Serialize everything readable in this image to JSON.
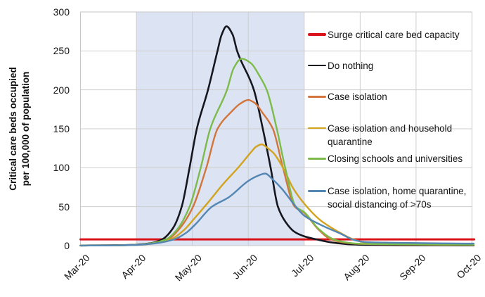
{
  "chart_data": {
    "type": "line",
    "title": "",
    "ylabel_lines": [
      "Critical care beds occupied",
      "per 100,000 of population"
    ],
    "xlabel": "",
    "x_tick_labels": [
      "Mar-20",
      "Apr-20",
      "May-20",
      "Jun-20",
      "Jul-20",
      "Aug-20",
      "Sep-20",
      "Oct-20"
    ],
    "y_ticks": [
      0,
      50,
      100,
      150,
      200,
      250,
      300
    ],
    "ylim": [
      0,
      300
    ],
    "x_months_range": [
      0,
      7
    ],
    "grid": true,
    "grid_color": "#cdcdcd",
    "plot_border_color": "#c6c6c6",
    "shaded_region": {
      "from_month": 1,
      "to_month": 4,
      "color": "#dce4f3"
    },
    "legend_position": "inside-right",
    "series": [
      {
        "id": "surge-capacity",
        "name": "Surge critical care bed capacity",
        "legend_lines": [
          "Surge critical care bed capacity"
        ],
        "color": "#da1118",
        "width": 3,
        "points": [
          [
            0,
            8
          ],
          [
            7.04,
            8
          ]
        ]
      },
      {
        "id": "do-nothing",
        "name": "Do nothing",
        "legend_lines": [
          "Do nothing"
        ],
        "color": "#16161e",
        "width": 2.6,
        "points": [
          [
            0,
            0.2
          ],
          [
            0.5,
            0.4
          ],
          [
            1.0,
            1.2
          ],
          [
            1.25,
            3
          ],
          [
            1.46,
            8
          ],
          [
            1.65,
            22
          ],
          [
            1.81,
            50
          ],
          [
            1.95,
            100
          ],
          [
            2.08,
            150
          ],
          [
            2.28,
            200
          ],
          [
            2.45,
            250
          ],
          [
            2.52,
            270
          ],
          [
            2.61,
            281.5
          ],
          [
            2.72,
            271
          ],
          [
            2.8,
            250
          ],
          [
            3.1,
            200
          ],
          [
            3.26,
            150
          ],
          [
            3.4,
            100
          ],
          [
            3.53,
            50
          ],
          [
            3.67,
            30
          ],
          [
            3.82,
            18
          ],
          [
            4.0,
            12
          ],
          [
            4.22,
            8
          ],
          [
            4.5,
            4
          ],
          [
            4.85,
            1.6
          ],
          [
            5.2,
            0.9
          ],
          [
            5.6,
            0.6
          ],
          [
            6.0,
            0.5
          ],
          [
            6.5,
            0.45
          ],
          [
            7.03,
            0.4
          ]
        ]
      },
      {
        "id": "case-isolation",
        "name": "Case isolation",
        "legend_lines": [
          "Case isolation"
        ],
        "color": "#d2753b",
        "width": 2.4,
        "points": [
          [
            0,
            0.15
          ],
          [
            0.5,
            0.3
          ],
          [
            1.0,
            1.1
          ],
          [
            1.28,
            3
          ],
          [
            1.56,
            8
          ],
          [
            1.75,
            20
          ],
          [
            2.0,
            48
          ],
          [
            2.25,
            100
          ],
          [
            2.45,
            150
          ],
          [
            2.7,
            172
          ],
          [
            2.85,
            182
          ],
          [
            3.0,
            187
          ],
          [
            3.12,
            183
          ],
          [
            3.25,
            171
          ],
          [
            3.44,
            150
          ],
          [
            3.62,
            100
          ],
          [
            3.83,
            50
          ],
          [
            4.0,
            42
          ],
          [
            4.25,
            21
          ],
          [
            4.48,
            8
          ],
          [
            4.75,
            3.6
          ],
          [
            5.0,
            2.2
          ],
          [
            5.5,
            1.6
          ],
          [
            6.0,
            1.3
          ],
          [
            6.5,
            1.1
          ],
          [
            7.03,
            1.0
          ]
        ]
      },
      {
        "id": "case-isolation-household-quarantine",
        "name": "Case isolation and household quarantine",
        "legend_lines": [
          "Case isolation and household",
          "quarantine"
        ],
        "color": "#d2a31e",
        "width": 2.4,
        "points": [
          [
            0,
            0.1
          ],
          [
            0.5,
            0.25
          ],
          [
            1.0,
            0.9
          ],
          [
            1.3,
            2.8
          ],
          [
            1.61,
            8
          ],
          [
            1.85,
            20
          ],
          [
            2.05,
            36
          ],
          [
            2.3,
            57
          ],
          [
            2.55,
            79
          ],
          [
            2.83,
            101
          ],
          [
            3.05,
            120
          ],
          [
            3.14,
            127
          ],
          [
            3.24,
            130
          ],
          [
            3.35,
            125
          ],
          [
            3.45,
            119
          ],
          [
            3.62,
            100
          ],
          [
            3.8,
            74
          ],
          [
            4.0,
            54
          ],
          [
            4.3,
            32
          ],
          [
            4.63,
            17
          ],
          [
            4.88,
            8
          ],
          [
            5.1,
            3.8
          ],
          [
            5.35,
            2.8
          ],
          [
            5.75,
            2.2
          ],
          [
            6.0,
            1.9
          ],
          [
            6.5,
            1.5
          ],
          [
            7.03,
            1.3
          ]
        ]
      },
      {
        "id": "closing-schools-universities",
        "name": "Closing schools and universities",
        "legend_lines": [
          "Closing schools and universities"
        ],
        "color": "#7cbb4a",
        "width": 2.4,
        "points": [
          [
            0,
            0.15
          ],
          [
            0.5,
            0.3
          ],
          [
            1.0,
            1.0
          ],
          [
            1.27,
            3
          ],
          [
            1.53,
            8
          ],
          [
            1.72,
            20
          ],
          [
            1.95,
            50
          ],
          [
            2.15,
            100
          ],
          [
            2.32,
            150
          ],
          [
            2.62,
            200
          ],
          [
            2.74,
            228
          ],
          [
            2.88,
            240
          ],
          [
            3.05,
            234
          ],
          [
            3.2,
            218
          ],
          [
            3.33,
            200
          ],
          [
            3.51,
            150
          ],
          [
            3.66,
            100
          ],
          [
            3.85,
            50
          ],
          [
            4.0,
            43
          ],
          [
            4.25,
            22
          ],
          [
            4.53,
            8
          ],
          [
            4.8,
            3.6
          ],
          [
            5.0,
            2.4
          ],
          [
            5.5,
            1.8
          ],
          [
            6.0,
            1.5
          ],
          [
            6.5,
            1.3
          ],
          [
            7.03,
            1.2
          ]
        ]
      },
      {
        "id": "case-isolation-home-quarantine-social-distancing",
        "name": "Case isolation, home quarantine, social distancing of >70s",
        "legend_lines": [
          "Case isolation, home quarantine,",
          "social distancing of >70s"
        ],
        "color": "#5486b4",
        "width": 2.4,
        "points": [
          [
            0,
            0.1
          ],
          [
            0.5,
            0.2
          ],
          [
            1.0,
            0.9
          ],
          [
            1.35,
            3
          ],
          [
            1.67,
            8
          ],
          [
            1.9,
            17
          ],
          [
            2.05,
            27
          ],
          [
            2.35,
            50
          ],
          [
            2.65,
            62
          ],
          [
            3.0,
            83
          ],
          [
            3.15,
            89
          ],
          [
            3.3,
            92.5
          ],
          [
            3.45,
            84
          ],
          [
            3.6,
            73
          ],
          [
            3.85,
            50
          ],
          [
            4.0,
            38.5
          ],
          [
            4.3,
            26.5
          ],
          [
            4.66,
            15
          ],
          [
            4.9,
            7
          ],
          [
            5.1,
            4.6
          ],
          [
            5.5,
            3.8
          ],
          [
            6.0,
            3.3
          ],
          [
            6.5,
            2.9
          ],
          [
            7.03,
            2.6
          ]
        ]
      }
    ]
  }
}
